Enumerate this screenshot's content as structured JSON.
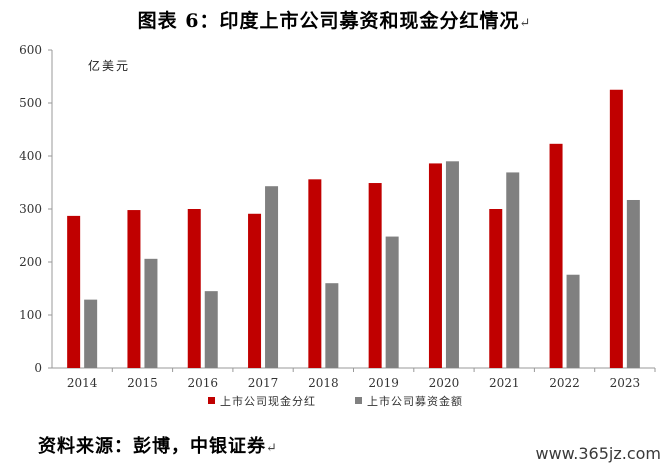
{
  "title": "图表 6：印度上市公司募资和现金分红情况",
  "paragraph_mark": "↵",
  "source": "资料来源：彭博，中银证券",
  "watermark": "www.365jz.com",
  "chart_data": {
    "type": "bar",
    "unit_label": "亿美元",
    "categories": [
      "2014",
      "2015",
      "2016",
      "2017",
      "2018",
      "2019",
      "2020",
      "2021",
      "2022",
      "2023"
    ],
    "series": [
      {
        "name": "上市公司现金分红",
        "color": "#c00000",
        "values": [
          287,
          298,
          300,
          291,
          356,
          349,
          386,
          300,
          423,
          525
        ]
      },
      {
        "name": "上市公司募资金额",
        "color": "#808080",
        "values": [
          129,
          206,
          145,
          343,
          160,
          248,
          390,
          369,
          176,
          317
        ]
      }
    ],
    "ylim": [
      0,
      600
    ],
    "yticks": [
      0,
      100,
      200,
      300,
      400,
      500,
      600
    ],
    "grid": false,
    "legend_position": "bottom"
  }
}
